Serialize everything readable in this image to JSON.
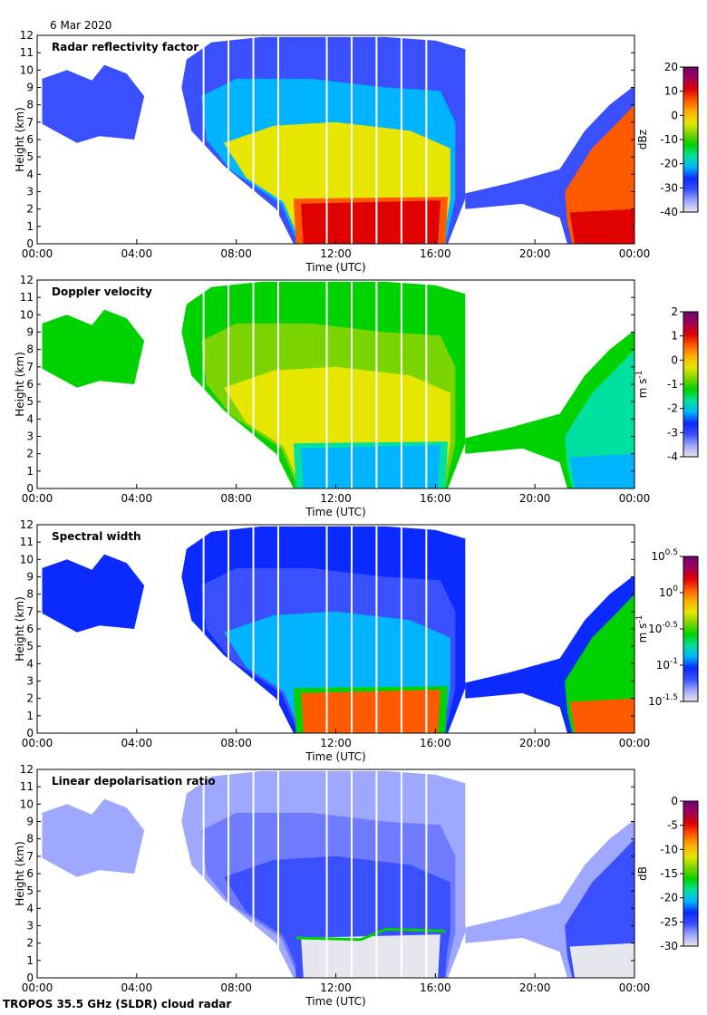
{
  "date": "6 Mar 2020",
  "footer": "TROPOS 35.5 GHz (SLDR) cloud radar",
  "chart_data": [
    {
      "type": "heatmap",
      "title": "Radar reflectivity factor",
      "xlabel": "Time (UTC)",
      "ylabel": "Height (km)",
      "xticks": [
        "00:00",
        "04:00",
        "08:00",
        "12:00",
        "16:00",
        "20:00",
        "00:00"
      ],
      "xlim": [
        0,
        24
      ],
      "ylim": [
        0,
        12
      ],
      "yticks": [
        0,
        1,
        2,
        3,
        4,
        5,
        6,
        7,
        8,
        9,
        10,
        11,
        12
      ],
      "colorbar": {
        "label": "dBz",
        "range": [
          -40,
          20
        ],
        "ticks": [
          "20",
          "10",
          "0",
          "-10",
          "-20",
          "-30",
          "-40"
        ]
      }
    },
    {
      "type": "heatmap",
      "title": "Doppler velocity",
      "xlabel": "Time (UTC)",
      "ylabel": "Height (km)",
      "xticks": [
        "00:00",
        "04:00",
        "08:00",
        "12:00",
        "16:00",
        "20:00",
        "00:00"
      ],
      "xlim": [
        0,
        24
      ],
      "ylim": [
        0,
        12
      ],
      "yticks": [
        0,
        1,
        2,
        3,
        4,
        5,
        6,
        7,
        8,
        9,
        10,
        11,
        12
      ],
      "colorbar": {
        "label": "m s-1",
        "range": [
          -4,
          2
        ],
        "ticks": [
          "2",
          "1",
          "0",
          "-1",
          "-2",
          "-3",
          "-4"
        ]
      }
    },
    {
      "type": "heatmap",
      "title": "Spectral width",
      "xlabel": "Time (UTC)",
      "ylabel": "Height (km)",
      "xticks": [
        "00:00",
        "04:00",
        "08:00",
        "12:00",
        "16:00",
        "20:00",
        "00:00"
      ],
      "xlim": [
        0,
        24
      ],
      "ylim": [
        0,
        12
      ],
      "yticks": [
        0,
        1,
        2,
        3,
        4,
        5,
        6,
        7,
        8,
        9,
        10,
        11,
        12
      ],
      "colorbar": {
        "label": "m s-1",
        "range": [
          -1.5,
          0.5
        ],
        "scale": "log10",
        "ticks": [
          "10^0.5",
          "10^0",
          "10^-0.5",
          "10^-1",
          "10^-1.5"
        ]
      }
    },
    {
      "type": "heatmap",
      "title": "Linear depolarisation ratio",
      "xlabel": "Time (UTC)",
      "ylabel": "Height (km)",
      "xticks": [
        "00:00",
        "04:00",
        "08:00",
        "12:00",
        "16:00",
        "20:00",
        "00:00"
      ],
      "xlim": [
        0,
        24
      ],
      "ylim": [
        0,
        12
      ],
      "yticks": [
        0,
        1,
        2,
        3,
        4,
        5,
        6,
        7,
        8,
        9,
        10,
        11,
        12
      ],
      "colorbar": {
        "label": "dB",
        "range": [
          -30,
          0
        ],
        "ticks": [
          "0",
          "-5",
          "-10",
          "-15",
          "-20",
          "-25",
          "-30"
        ]
      }
    }
  ]
}
